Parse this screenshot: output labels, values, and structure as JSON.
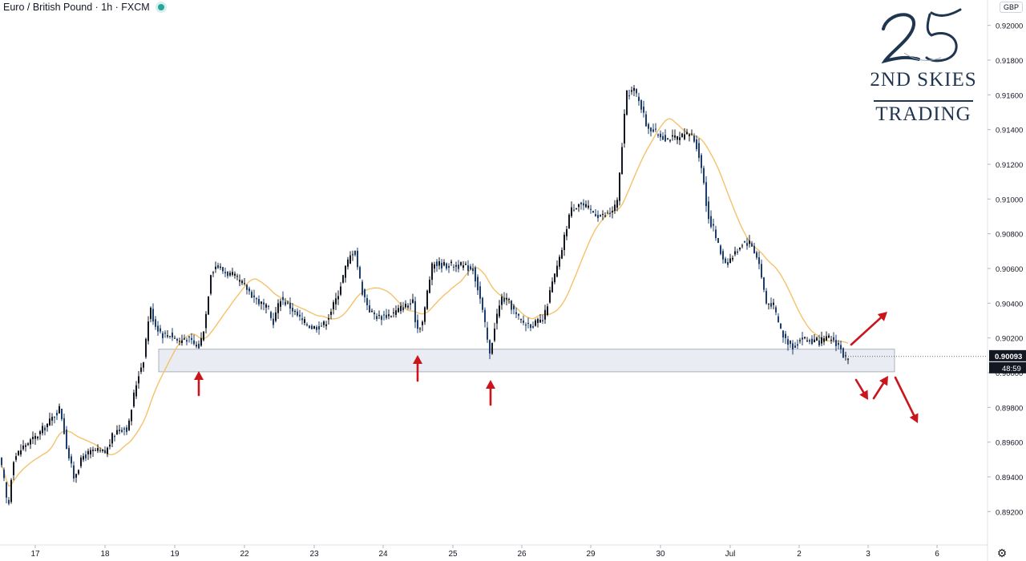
{
  "legend": {
    "title": "Euro / British Pound · 1h · FXCM"
  },
  "currency": "GBP",
  "logo": {
    "name": "2ND SKIES",
    "sub": "TRADING"
  },
  "price_labels": {
    "last": "0.90093",
    "countdown": "48:59",
    "partial": "0"
  },
  "colors": {
    "up": "#131722",
    "down": "#1c3d6e",
    "ma": "#f5c26b",
    "zone": "#e9ecf2",
    "arrows": "#c9151b",
    "badge": "#131722",
    "logo": "#1f3550"
  },
  "icons": {
    "status": "green-dot-icon",
    "settings": "gear-icon"
  },
  "chart_data": {
    "type": "candlestick",
    "yticks": [
      "0.89200",
      "0.89400",
      "0.89600",
      "0.89800",
      "0.90000",
      "0.90200",
      "0.90400",
      "0.90600",
      "0.90800",
      "0.91000",
      "0.91200",
      "0.91400",
      "0.91600",
      "0.91800",
      "0.92000"
    ],
    "ylim": [
      0.891,
      0.921
    ],
    "xticks": [
      "17",
      "18",
      "19",
      "22",
      "23",
      "24",
      "25",
      "26",
      "29",
      "30",
      "Jul",
      "2",
      "3",
      "6"
    ],
    "grid": false,
    "moving_average": true,
    "price_anchors": [
      [
        0,
        0.895
      ],
      [
        6,
        0.8935
      ],
      [
        10,
        0.892
      ],
      [
        16,
        0.895
      ],
      [
        30,
        0.8958
      ],
      [
        45,
        0.8963
      ],
      [
        62,
        0.8972
      ],
      [
        75,
        0.898
      ],
      [
        84,
        0.8955
      ],
      [
        92,
        0.894
      ],
      [
        104,
        0.8952
      ],
      [
        118,
        0.8955
      ],
      [
        132,
        0.8954
      ],
      [
        140,
        0.8963
      ],
      [
        148,
        0.8968
      ],
      [
        160,
        0.8968
      ],
      [
        166,
        0.8985
      ],
      [
        172,
        0.8998
      ],
      [
        179,
        0.9008
      ],
      [
        187,
        0.9038
      ],
      [
        193,
        0.9028
      ],
      [
        203,
        0.9022
      ],
      [
        213,
        0.9022
      ],
      [
        223,
        0.9018
      ],
      [
        233,
        0.902
      ],
      [
        243,
        0.9016
      ],
      [
        249,
        0.9015
      ],
      [
        256,
        0.903
      ],
      [
        263,
        0.9058
      ],
      [
        270,
        0.9062
      ],
      [
        280,
        0.9058
      ],
      [
        290,
        0.9056
      ],
      [
        305,
        0.905
      ],
      [
        320,
        0.9042
      ],
      [
        335,
        0.9036
      ],
      [
        340,
        0.9028
      ],
      [
        350,
        0.9043
      ],
      [
        362,
        0.9038
      ],
      [
        376,
        0.903
      ],
      [
        390,
        0.9026
      ],
      [
        405,
        0.9028
      ],
      [
        420,
        0.9043
      ],
      [
        432,
        0.9062
      ],
      [
        442,
        0.9072
      ],
      [
        451,
        0.9048
      ],
      [
        462,
        0.9035
      ],
      [
        472,
        0.9032
      ],
      [
        490,
        0.9034
      ],
      [
        503,
        0.9038
      ],
      [
        515,
        0.904
      ],
      [
        520,
        0.9025
      ],
      [
        528,
        0.903
      ],
      [
        534,
        0.905
      ],
      [
        540,
        0.9063
      ],
      [
        555,
        0.9062
      ],
      [
        570,
        0.9062
      ],
      [
        590,
        0.906
      ],
      [
        598,
        0.9045
      ],
      [
        604,
        0.903
      ],
      [
        611,
        0.901
      ],
      [
        618,
        0.903
      ],
      [
        626,
        0.9043
      ],
      [
        636,
        0.904
      ],
      [
        645,
        0.9032
      ],
      [
        655,
        0.9028
      ],
      [
        666,
        0.9028
      ],
      [
        678,
        0.903
      ],
      [
        688,
        0.905
      ],
      [
        698,
        0.9065
      ],
      [
        705,
        0.908
      ],
      [
        711,
        0.9093
      ],
      [
        722,
        0.9098
      ],
      [
        738,
        0.9093
      ],
      [
        750,
        0.909
      ],
      [
        762,
        0.9092
      ],
      [
        770,
        0.9098
      ],
      [
        775,
        0.9125
      ],
      [
        781,
        0.916
      ],
      [
        790,
        0.9163
      ],
      [
        798,
        0.9157
      ],
      [
        806,
        0.9143
      ],
      [
        818,
        0.9138
      ],
      [
        832,
        0.9135
      ],
      [
        848,
        0.9135
      ],
      [
        862,
        0.9138
      ],
      [
        870,
        0.913
      ],
      [
        878,
        0.911
      ],
      [
        883,
        0.909
      ],
      [
        890,
        0.9083
      ],
      [
        898,
        0.907
      ],
      [
        906,
        0.9063
      ],
      [
        916,
        0.9068
      ],
      [
        926,
        0.9075
      ],
      [
        936,
        0.9075
      ],
      [
        946,
        0.9065
      ],
      [
        956,
        0.904
      ],
      [
        964,
        0.904
      ],
      [
        970,
        0.903
      ],
      [
        978,
        0.902
      ],
      [
        990,
        0.9015
      ],
      [
        1000,
        0.902
      ],
      [
        1012,
        0.9018
      ],
      [
        1024,
        0.9018
      ],
      [
        1036,
        0.902
      ],
      [
        1046,
        0.9016
      ],
      [
        1052,
        0.901
      ],
      [
        1058,
        0.9007
      ]
    ],
    "candle_start_x": 2,
    "candle_step_px": 3,
    "ma_period": 20,
    "support_zone": {
      "top": 0.90135,
      "bottom": 0.90005,
      "x_from_day": "19",
      "x_to_day": "3"
    },
    "support_touches": [
      "19",
      "24",
      "25"
    ],
    "scenario_arrows": [
      "up",
      "down-small",
      "up-small",
      "down"
    ]
  }
}
